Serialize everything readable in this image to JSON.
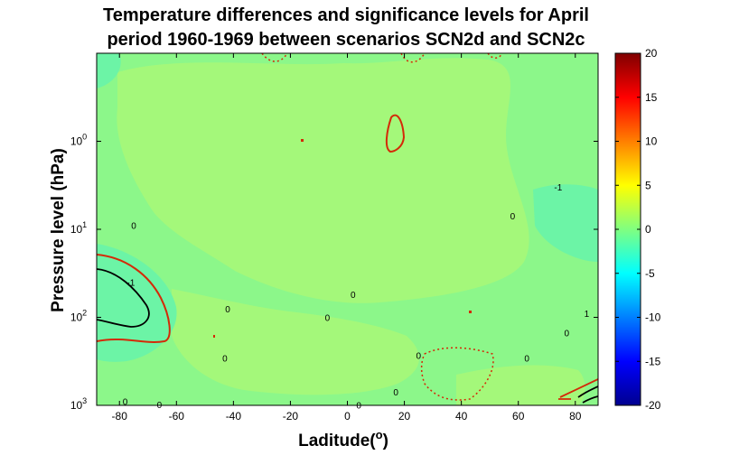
{
  "chart_data": {
    "type": "heatmap",
    "title": [
      "Temperature differences and significance levels for April",
      "period 1960-1969 between scenarios SCN2d and SCN2c"
    ],
    "xlabel": "Laditude(",
    "xlabel_sup": "o",
    "xlabel_close": ")",
    "ylabel": "Pressure level (hPa)",
    "xlim": [
      -88,
      88
    ],
    "x_ticks": [
      -80,
      -60,
      -40,
      -20,
      0,
      20,
      40,
      60,
      80
    ],
    "y_scale": "log",
    "y_reversed": true,
    "ylim": [
      0.1,
      1000
    ],
    "y_ticks": [
      {
        "value": 1,
        "base": "10",
        "exp": "0"
      },
      {
        "value": 10,
        "base": "10",
        "exp": "1"
      },
      {
        "value": 100,
        "base": "10",
        "exp": "2"
      },
      {
        "value": 1000,
        "base": "10",
        "exp": "3"
      }
    ],
    "colorbar": {
      "min": -20,
      "max": 20,
      "ticks": [
        20,
        15,
        10,
        5,
        0,
        -5,
        -10,
        -15,
        -20
      ],
      "colormap": "jet"
    },
    "contour_labels": [
      {
        "text": "0",
        "lat": -75,
        "p": 9
      },
      {
        "text": "-1",
        "lat": -76,
        "p": 40
      },
      {
        "text": "0",
        "lat": -42,
        "p": 80
      },
      {
        "text": "0",
        "lat": -43,
        "p": 290
      },
      {
        "text": "0",
        "lat": 2,
        "p": 55
      },
      {
        "text": "0",
        "lat": -7,
        "p": 100
      },
      {
        "text": "0",
        "lat": 58,
        "p": 7
      },
      {
        "text": "-1",
        "lat": 74,
        "p": 3.3
      },
      {
        "text": "1",
        "lat": 84,
        "p": 90
      },
      {
        "text": "0",
        "lat": 77,
        "p": 150
      },
      {
        "text": "0",
        "lat": 25,
        "p": 270
      },
      {
        "text": "0",
        "lat": 63,
        "p": 290
      },
      {
        "text": "0",
        "lat": 17,
        "p": 700
      },
      {
        "text": "0",
        "lat": -78,
        "p": 900
      },
      {
        "text": "0",
        "lat": -66,
        "p": 980
      },
      {
        "text": "0",
        "lat": 4,
        "p": 990
      }
    ]
  }
}
